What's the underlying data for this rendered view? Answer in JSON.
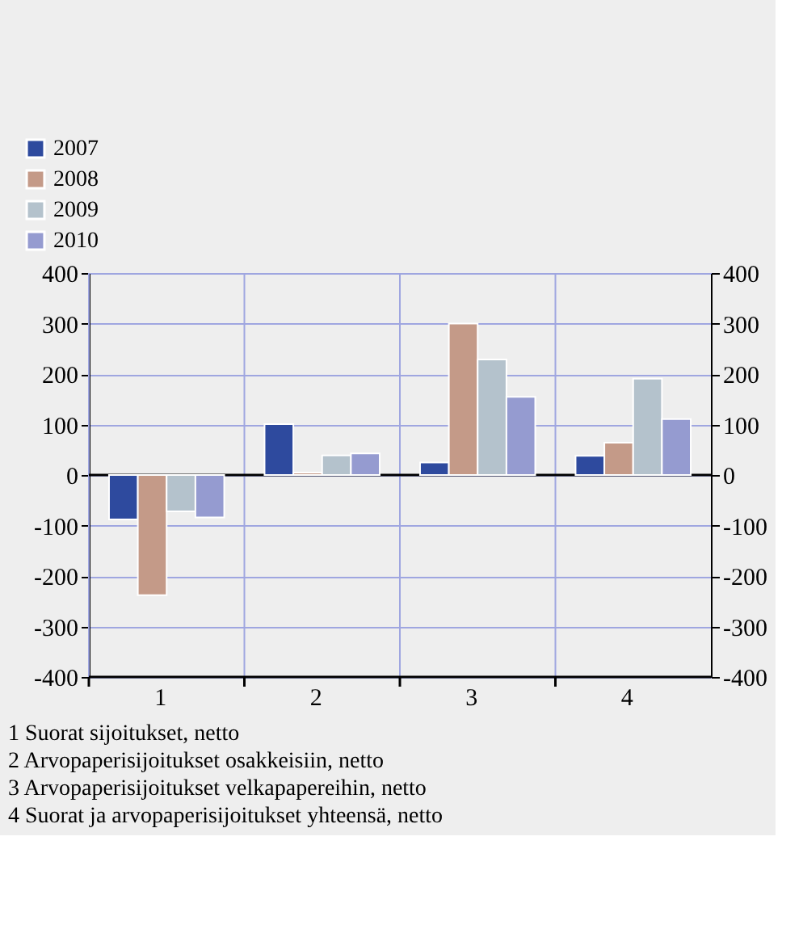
{
  "chart_data": {
    "type": "bar",
    "categories": [
      "1",
      "2",
      "3",
      "4"
    ],
    "series": [
      {
        "name": "2007",
        "color": "#2e4a9e",
        "values": [
          -88,
          101,
          25,
          38
        ]
      },
      {
        "name": "2008",
        "color": "#c49a88",
        "values": [
          -238,
          5,
          300,
          64
        ]
      },
      {
        "name": "2009",
        "color": "#b4c2cc",
        "values": [
          -72,
          39,
          229,
          191
        ]
      },
      {
        "name": "2010",
        "color": "#959bd0",
        "values": [
          -84,
          43,
          155,
          111
        ]
      }
    ],
    "ylim": [
      -400,
      400
    ],
    "yticks": [
      -400,
      -300,
      -200,
      -100,
      0,
      100,
      200,
      300,
      400
    ],
    "y2lim": [
      -400,
      400
    ],
    "y2ticks": [
      -400,
      -300,
      -200,
      -100,
      0,
      100,
      200,
      300,
      400
    ],
    "ref_lines": [
      {
        "axis": "y",
        "value": 0,
        "color": "#000000"
      }
    ],
    "grid": true,
    "legend": "top left",
    "annotations": [
      "1 Suorat sijoitukset, netto",
      "2 Arvopaperisijoitukset osakkeisiin, netto",
      "3 Arvopaperisijoitukset velkapapereihin, netto",
      "4 Suorat ja arvopaperisijoitukset yhteensä, netto"
    ]
  }
}
